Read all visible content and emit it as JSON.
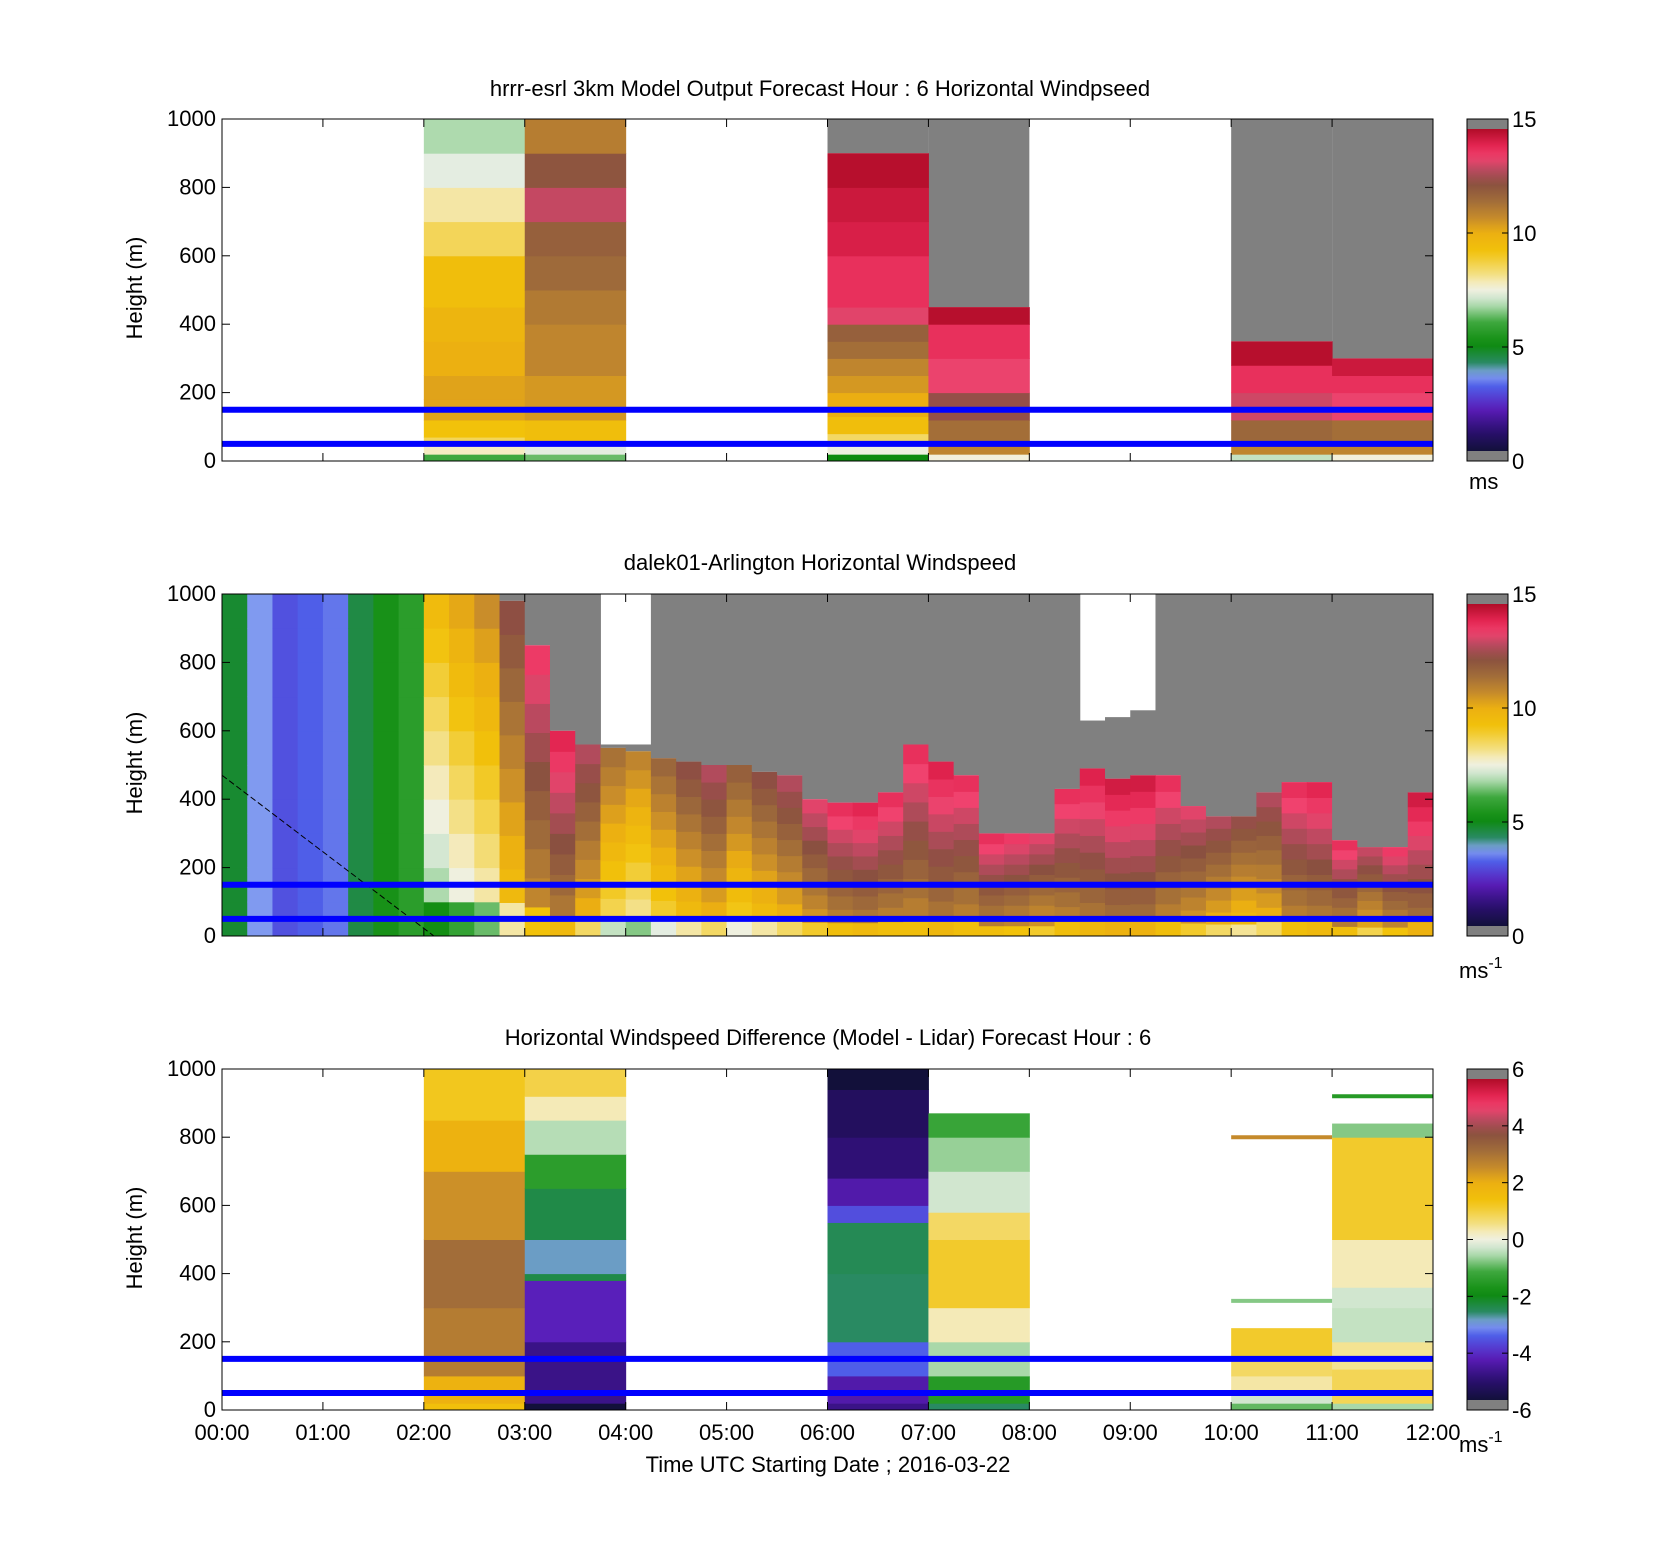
{
  "figure": {
    "xlabel": "Time UTC  Starting Date ; 2016-03-22",
    "x_ticks": [
      "00:00",
      "01:00",
      "02:00",
      "03:00",
      "04:00",
      "05:00",
      "06:00",
      "07:00",
      "08:00",
      "09:00",
      "10:00",
      "11:00",
      "12:00"
    ],
    "y_ticks": [
      "0",
      "200",
      "400",
      "600",
      "800",
      "1000"
    ],
    "overlay_line_color": "#0000ff"
  },
  "chart_data": [
    {
      "type": "heatmap",
      "title": "hrrr-esrl 3km Model Output   Forecast Hour : 6 Horizontal Windpseed",
      "ylabel": "Height (m)",
      "xlim": [
        0,
        12
      ],
      "ylim": [
        0,
        1000
      ],
      "colorbar": {
        "min": 0,
        "max": 15,
        "ticks": [
          "0",
          "5",
          "10",
          "15"
        ],
        "unit_label": "ms",
        "unit_superscript": ""
      },
      "reference_lines_m": [
        50,
        150
      ],
      "columns": [
        {
          "t0": 2,
          "t1": 3,
          "cells": [
            [
              0,
              20,
              6.0
            ],
            [
              20,
              50,
              7.8
            ],
            [
              50,
              70,
              8.6
            ],
            [
              70,
              120,
              9.3
            ],
            [
              120,
              180,
              10.4
            ],
            [
              180,
              250,
              10.4
            ],
            [
              250,
              350,
              10.1
            ],
            [
              350,
              450,
              9.9
            ],
            [
              450,
              600,
              9.5
            ],
            [
              600,
              700,
              8.6
            ],
            [
              700,
              800,
              8.0
            ],
            [
              800,
              900,
              7.3
            ],
            [
              900,
              1000,
              6.8
            ]
          ]
        },
        {
          "t0": 3,
          "t1": 4,
          "cells": [
            [
              0,
              20,
              6.3
            ],
            [
              20,
              60,
              7.3
            ],
            [
              60,
              120,
              9.5
            ],
            [
              120,
              250,
              10.6
            ],
            [
              250,
              400,
              11.0
            ],
            [
              400,
              500,
              11.3
            ],
            [
              500,
              600,
              11.7
            ],
            [
              600,
              700,
              12.0
            ],
            [
              700,
              800,
              13.2
            ],
            [
              800,
              900,
              12.3
            ],
            [
              900,
              1000,
              11.2
            ]
          ]
        },
        {
          "t0": 6,
          "t1": 7,
          "cells": [
            [
              0,
              20,
              5.0
            ],
            [
              20,
              50,
              7.5
            ],
            [
              50,
              80,
              8.5
            ],
            [
              80,
              130,
              9.5
            ],
            [
              130,
              200,
              10.2
            ],
            [
              200,
              250,
              10.6
            ],
            [
              250,
              300,
              11.0
            ],
            [
              300,
              350,
              11.6
            ],
            [
              350,
              400,
              12.0
            ],
            [
              400,
              450,
              13.5
            ],
            [
              450,
              600,
              14.0
            ],
            [
              600,
              700,
              14.4
            ],
            [
              700,
              800,
              14.6
            ],
            [
              800,
              900,
              14.9
            ]
          ]
        },
        {
          "t0": 7,
          "t1": 8,
          "cells": [
            [
              0,
              20,
              7.6
            ],
            [
              20,
              60,
              11.0
            ],
            [
              60,
              120,
              11.6
            ],
            [
              120,
              200,
              12.6
            ],
            [
              200,
              300,
              13.6
            ],
            [
              300,
              400,
              14.0
            ],
            [
              400,
              450,
              14.9
            ]
          ]
        },
        {
          "t0": 10,
          "t1": 11,
          "cells": [
            [
              0,
              20,
              7.0
            ],
            [
              20,
              60,
              11.0
            ],
            [
              60,
              120,
              11.8
            ],
            [
              120,
              200,
              13.3
            ],
            [
              200,
              280,
              14.0
            ],
            [
              280,
              350,
              14.9
            ]
          ]
        },
        {
          "t0": 11,
          "t1": 12,
          "cells": [
            [
              0,
              20,
              7.6
            ],
            [
              20,
              60,
              11.0
            ],
            [
              60,
              120,
              11.6
            ],
            [
              120,
              200,
              13.6
            ],
            [
              200,
              250,
              14.0
            ],
            [
              250,
              300,
              14.6
            ]
          ]
        }
      ],
      "missing_blocks": [
        {
          "t0": 6,
          "t1": 7,
          "h0": 900,
          "h1": 1000
        },
        {
          "t0": 7,
          "t1": 8,
          "h0": 450,
          "h1": 1000
        },
        {
          "t0": 10,
          "t1": 11,
          "h0": 350,
          "h1": 1000
        },
        {
          "t0": 11,
          "t1": 12,
          "h0": 300,
          "h1": 1000
        }
      ]
    },
    {
      "type": "heatmap",
      "title": "dalek01-Arlington  Horizontal Windspeed",
      "ylabel": "Height (m)",
      "xlim": [
        0,
        12
      ],
      "ylim": [
        0,
        1000
      ],
      "colorbar": {
        "min": 0,
        "max": 15,
        "ticks": [
          "0",
          "5",
          "10",
          "15"
        ],
        "unit_label": "ms",
        "unit_superscript": "-1"
      },
      "reference_lines_m": [
        50,
        150
      ],
      "profiles": [
        {
          "t": 0.125,
          "top": 1000,
          "speed": 4.6,
          "missing_above": 1000
        },
        {
          "t": 0.375,
          "top": 1000,
          "speed": 3.5,
          "missing_above": 1000
        },
        {
          "t": 0.625,
          "top": 1000,
          "speed": 2.8,
          "missing_above": 1000
        },
        {
          "t": 0.875,
          "top": 1000,
          "speed": 3.0,
          "missing_above": 1000
        },
        {
          "t": 1.125,
          "top": 1000,
          "speed": 3.2,
          "missing_above": 1000
        },
        {
          "t": 1.375,
          "top": 1000,
          "speed": 4.4,
          "missing_above": 1000
        },
        {
          "t": 1.625,
          "top": 1000,
          "speed": 5.2,
          "missing_above": 1000
        },
        {
          "t": 1.875,
          "top": 1000,
          "speed": 5.6,
          "missing_above": 1000
        },
        {
          "t": 2.125,
          "top": 1000,
          "speed": 9.6,
          "missing_above": 1000
        },
        {
          "t": 2.375,
          "top": 1000,
          "speed": 10.3,
          "missing_above": 1000
        },
        {
          "t": 2.625,
          "top": 1000,
          "speed": 10.8,
          "missing_above": 1000
        },
        {
          "t": 2.875,
          "top": 980,
          "speed": 12.5,
          "missing_above": 1000
        },
        {
          "t": 3.125,
          "top": 850,
          "speed": 13.8,
          "missing_above": 1000
        },
        {
          "t": 3.375,
          "top": 600,
          "speed": 14.2,
          "missing_above": 1000
        },
        {
          "t": 3.625,
          "top": 560,
          "speed": 13.0,
          "missing_above": 1000
        },
        {
          "t": 3.875,
          "top": 550,
          "speed": 11.5,
          "missing_above": 560
        },
        {
          "t": 4.125,
          "top": 540,
          "speed": 11.0,
          "missing_above": 560
        },
        {
          "t": 4.375,
          "top": 520,
          "speed": 11.8,
          "missing_above": 1000
        },
        {
          "t": 4.625,
          "top": 510,
          "speed": 12.5,
          "missing_above": 1000
        },
        {
          "t": 4.875,
          "top": 500,
          "speed": 13.0,
          "missing_above": 1000
        },
        {
          "t": 5.125,
          "top": 500,
          "speed": 12.0,
          "missing_above": 1000
        },
        {
          "t": 5.375,
          "top": 480,
          "speed": 12.5,
          "missing_above": 1000
        },
        {
          "t": 5.625,
          "top": 470,
          "speed": 13.0,
          "missing_above": 1000
        },
        {
          "t": 5.875,
          "top": 400,
          "speed": 13.5,
          "missing_above": 1000
        },
        {
          "t": 6.125,
          "top": 390,
          "speed": 14.0,
          "missing_above": 1000
        },
        {
          "t": 6.375,
          "top": 390,
          "speed": 14.2,
          "missing_above": 1000
        },
        {
          "t": 6.625,
          "top": 420,
          "speed": 14.0,
          "missing_above": 1000
        },
        {
          "t": 6.875,
          "top": 560,
          "speed": 14.0,
          "missing_above": 1000
        },
        {
          "t": 7.125,
          "top": 510,
          "speed": 14.3,
          "missing_above": 1000
        },
        {
          "t": 7.375,
          "top": 470,
          "speed": 14.0,
          "missing_above": 1000
        },
        {
          "t": 7.625,
          "top": 300,
          "speed": 14.0,
          "missing_above": 1000
        },
        {
          "t": 7.875,
          "top": 300,
          "speed": 13.8,
          "missing_above": 1000
        },
        {
          "t": 8.125,
          "top": 300,
          "speed": 13.5,
          "missing_above": 1000
        },
        {
          "t": 8.375,
          "top": 430,
          "speed": 14.0,
          "missing_above": 1000
        },
        {
          "t": 8.625,
          "top": 490,
          "speed": 14.3,
          "missing_above": 630
        },
        {
          "t": 8.875,
          "top": 460,
          "speed": 14.5,
          "missing_above": 640
        },
        {
          "t": 9.125,
          "top": 470,
          "speed": 14.5,
          "missing_above": 660
        },
        {
          "t": 9.375,
          "top": 470,
          "speed": 14.0,
          "missing_above": 1000
        },
        {
          "t": 9.625,
          "top": 380,
          "speed": 13.5,
          "missing_above": 1000
        },
        {
          "t": 9.875,
          "top": 350,
          "speed": 13.0,
          "missing_above": 1000
        },
        {
          "t": 10.125,
          "top": 350,
          "speed": 12.6,
          "missing_above": 1000
        },
        {
          "t": 10.375,
          "top": 420,
          "speed": 13.0,
          "missing_above": 1000
        },
        {
          "t": 10.625,
          "top": 450,
          "speed": 14.0,
          "missing_above": 1000
        },
        {
          "t": 10.875,
          "top": 450,
          "speed": 14.2,
          "missing_above": 1000
        },
        {
          "t": 11.125,
          "top": 280,
          "speed": 14.0,
          "missing_above": 1000
        },
        {
          "t": 11.375,
          "top": 260,
          "speed": 13.2,
          "missing_above": 1000
        },
        {
          "t": 11.625,
          "top": 260,
          "speed": 13.8,
          "missing_above": 1000
        },
        {
          "t": 11.875,
          "top": 420,
          "speed": 14.5,
          "missing_above": 1000
        }
      ],
      "diagonal_line": {
        "t0": 0,
        "h0": 470,
        "t1": 2.1,
        "h1": 0
      }
    },
    {
      "type": "heatmap",
      "title": "Horizontal Windspeed Difference (Model - Lidar) Forecast Hour : 6",
      "ylabel": "Height (m)",
      "xlim": [
        0,
        12
      ],
      "ylim": [
        0,
        1000
      ],
      "colorbar": {
        "min": -6,
        "max": 6,
        "ticks": [
          "-6",
          "-4",
          "-2",
          "0",
          "2",
          "4",
          "6"
        ],
        "unit_label": "ms",
        "unit_superscript": "-1"
      },
      "reference_lines_m": [
        50,
        150
      ],
      "columns": [
        {
          "t0": 2,
          "t1": 3,
          "cells": [
            [
              0,
              20,
              1.5
            ],
            [
              20,
              100,
              2.0
            ],
            [
              100,
              300,
              3.0
            ],
            [
              300,
              500,
              3.3
            ],
            [
              500,
              700,
              2.6
            ],
            [
              700,
              850,
              2.0
            ],
            [
              850,
              1000,
              1.3
            ]
          ]
        },
        {
          "t0": 3,
          "t1": 4,
          "cells": [
            [
              0,
              20,
              -6.0
            ],
            [
              20,
              200,
              -5.0
            ],
            [
              200,
              380,
              -4.4
            ],
            [
              380,
              400,
              -2.5
            ],
            [
              400,
              500,
              -3.0
            ],
            [
              500,
              650,
              -2.5
            ],
            [
              650,
              750,
              -1.5
            ],
            [
              750,
              850,
              -0.5
            ],
            [
              850,
              920,
              0.3
            ],
            [
              920,
              1000,
              1.0
            ]
          ]
        },
        {
          "t0": 6,
          "t1": 7,
          "cells": [
            [
              0,
              20,
              -5.0
            ],
            [
              20,
              100,
              -4.6
            ],
            [
              100,
              200,
              -3.6
            ],
            [
              200,
              400,
              -2.7
            ],
            [
              400,
              550,
              -2.6
            ],
            [
              550,
              600,
              -3.8
            ],
            [
              600,
              680,
              -4.6
            ],
            [
              680,
              800,
              -5.2
            ],
            [
              800,
              940,
              -5.5
            ],
            [
              940,
              1000,
              -6.0
            ]
          ]
        },
        {
          "t0": 7,
          "t1": 8,
          "cells": [
            [
              0,
              20,
              -2.7
            ],
            [
              20,
              100,
              -1.6
            ],
            [
              100,
              200,
              -0.6
            ],
            [
              200,
              300,
              0.3
            ],
            [
              300,
              500,
              1.2
            ],
            [
              500,
              580,
              0.8
            ],
            [
              580,
              700,
              -0.3
            ],
            [
              700,
              800,
              -0.7
            ],
            [
              800,
              870,
              -1.3
            ]
          ]
        },
        {
          "t0": 10,
          "t1": 11,
          "cells": [
            [
              0,
              20,
              -1.0
            ],
            [
              20,
              60,
              -0.3
            ],
            [
              60,
              100,
              0.4
            ],
            [
              100,
              160,
              0.8
            ],
            [
              160,
              240,
              1.2
            ]
          ]
        },
        {
          "t0": 11,
          "t1": 12,
          "cells": [
            [
              0,
              20,
              -0.6
            ],
            [
              20,
              120,
              0.9
            ],
            [
              120,
              200,
              0.5
            ],
            [
              200,
              300,
              -0.4
            ],
            [
              300,
              360,
              -0.3
            ],
            [
              360,
              500,
              0.3
            ],
            [
              500,
              800,
              1.2
            ],
            [
              800,
              840,
              -0.8
            ]
          ]
        }
      ],
      "thin_lines": [
        {
          "t0": 10,
          "t1": 11,
          "h": 800,
          "value": 2.7
        },
        {
          "t0": 10,
          "t1": 11,
          "h": 320,
          "value": -0.8
        },
        {
          "t0": 11,
          "t1": 12,
          "h": 920,
          "value": -1.6
        }
      ]
    }
  ]
}
